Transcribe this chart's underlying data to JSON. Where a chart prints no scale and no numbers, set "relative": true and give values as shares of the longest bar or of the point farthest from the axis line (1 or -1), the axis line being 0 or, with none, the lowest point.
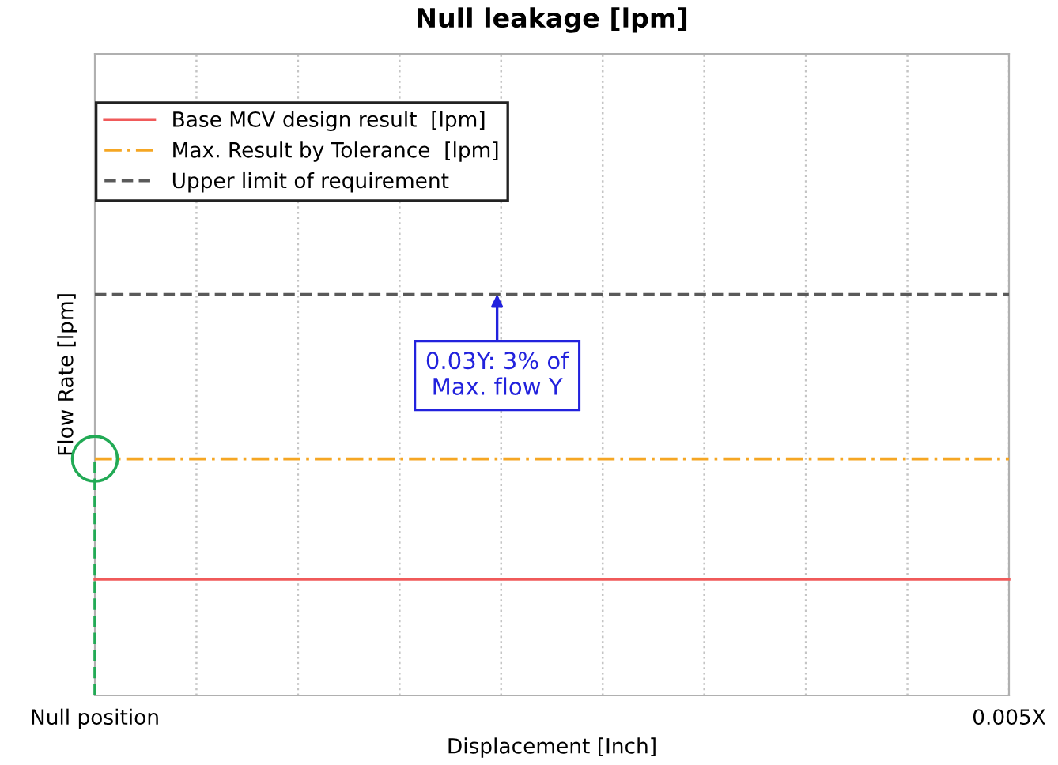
{
  "chart_data": {
    "type": "line",
    "title": "Null leakage [lpm]",
    "xlabel": "Displacement [Inch]",
    "ylabel": "Flow Rate [lpm]",
    "relative": true,
    "categories": [
      "Null position",
      null,
      null,
      null,
      null,
      null,
      null,
      null,
      null,
      "0.005X"
    ],
    "grid": "x",
    "legend": "top left",
    "series": [
      {
        "name": "Base MCV design result  [lpm]",
        "color": "#f05a5a",
        "values": [
          0.29,
          0.29,
          0.29,
          0.29,
          0.29,
          0.29,
          0.29,
          0.29,
          0.29,
          0.29
        ],
        "line_style": "solid"
      },
      {
        "name": "Max. Result by Tolerance  [lpm]",
        "color": "#f5a623",
        "values": [
          0.59,
          0.59,
          0.59,
          0.59,
          0.59,
          0.59,
          0.59,
          0.59,
          0.59,
          0.59
        ],
        "line_style": "dashdot"
      },
      {
        "name": "Upper limit of requirement",
        "color": "#5a5a5a",
        "values": [
          1,
          1,
          1,
          1,
          1,
          1,
          1,
          1,
          1,
          1
        ],
        "line_style": "dashed"
      },
      {
        "type": "line",
        "color": "#22aa55",
        "x": [
          "Null position",
          "Null position"
        ],
        "values": [
          0,
          0.59
        ],
        "line_style": "dashed"
      },
      {
        "type": "scatter",
        "color": "#22aa55",
        "x": [
          "Null position"
        ],
        "values": [
          0.59
        ],
        "marker": "circle"
      }
    ],
    "annotations": [
      "0.03Y: 3% of\nMax. flow Y"
    ]
  }
}
